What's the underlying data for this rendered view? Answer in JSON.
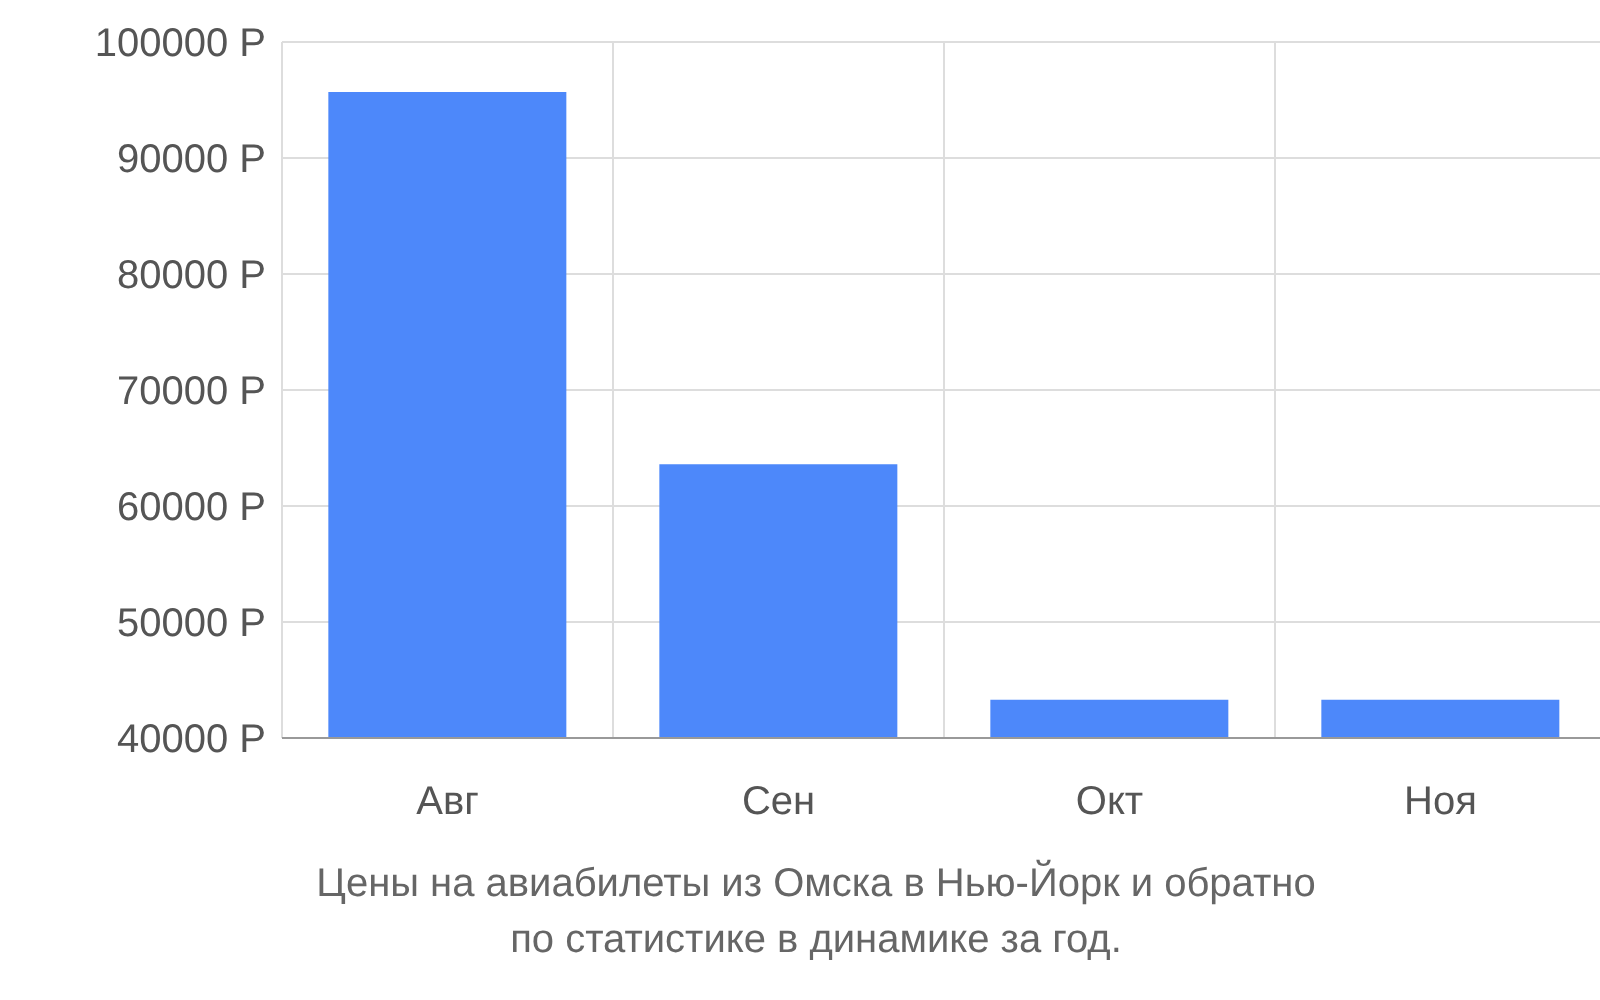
{
  "chart_data": {
    "type": "bar",
    "categories": [
      "Авг",
      "Сен",
      "Окт",
      "Ноя"
    ],
    "values": [
      95700,
      63600,
      43300,
      43300
    ],
    "color": "#4d88fa",
    "ylim": [
      40000,
      100000
    ],
    "yticks": [
      {
        "value": 40000,
        "label": "40000 Р"
      },
      {
        "value": 50000,
        "label": "50000 Р"
      },
      {
        "value": 60000,
        "label": "60000 Р"
      },
      {
        "value": 70000,
        "label": "70000 Р"
      },
      {
        "value": 80000,
        "label": "80000 Р"
      },
      {
        "value": 90000,
        "label": "90000 Р"
      },
      {
        "value": 100000,
        "label": "100000 Р"
      }
    ],
    "grid": true,
    "annotations": [
      "Цены на авиабилеты из Омска в Нью-Йорк и обратно\nпо статистике в динамике за год."
    ]
  }
}
